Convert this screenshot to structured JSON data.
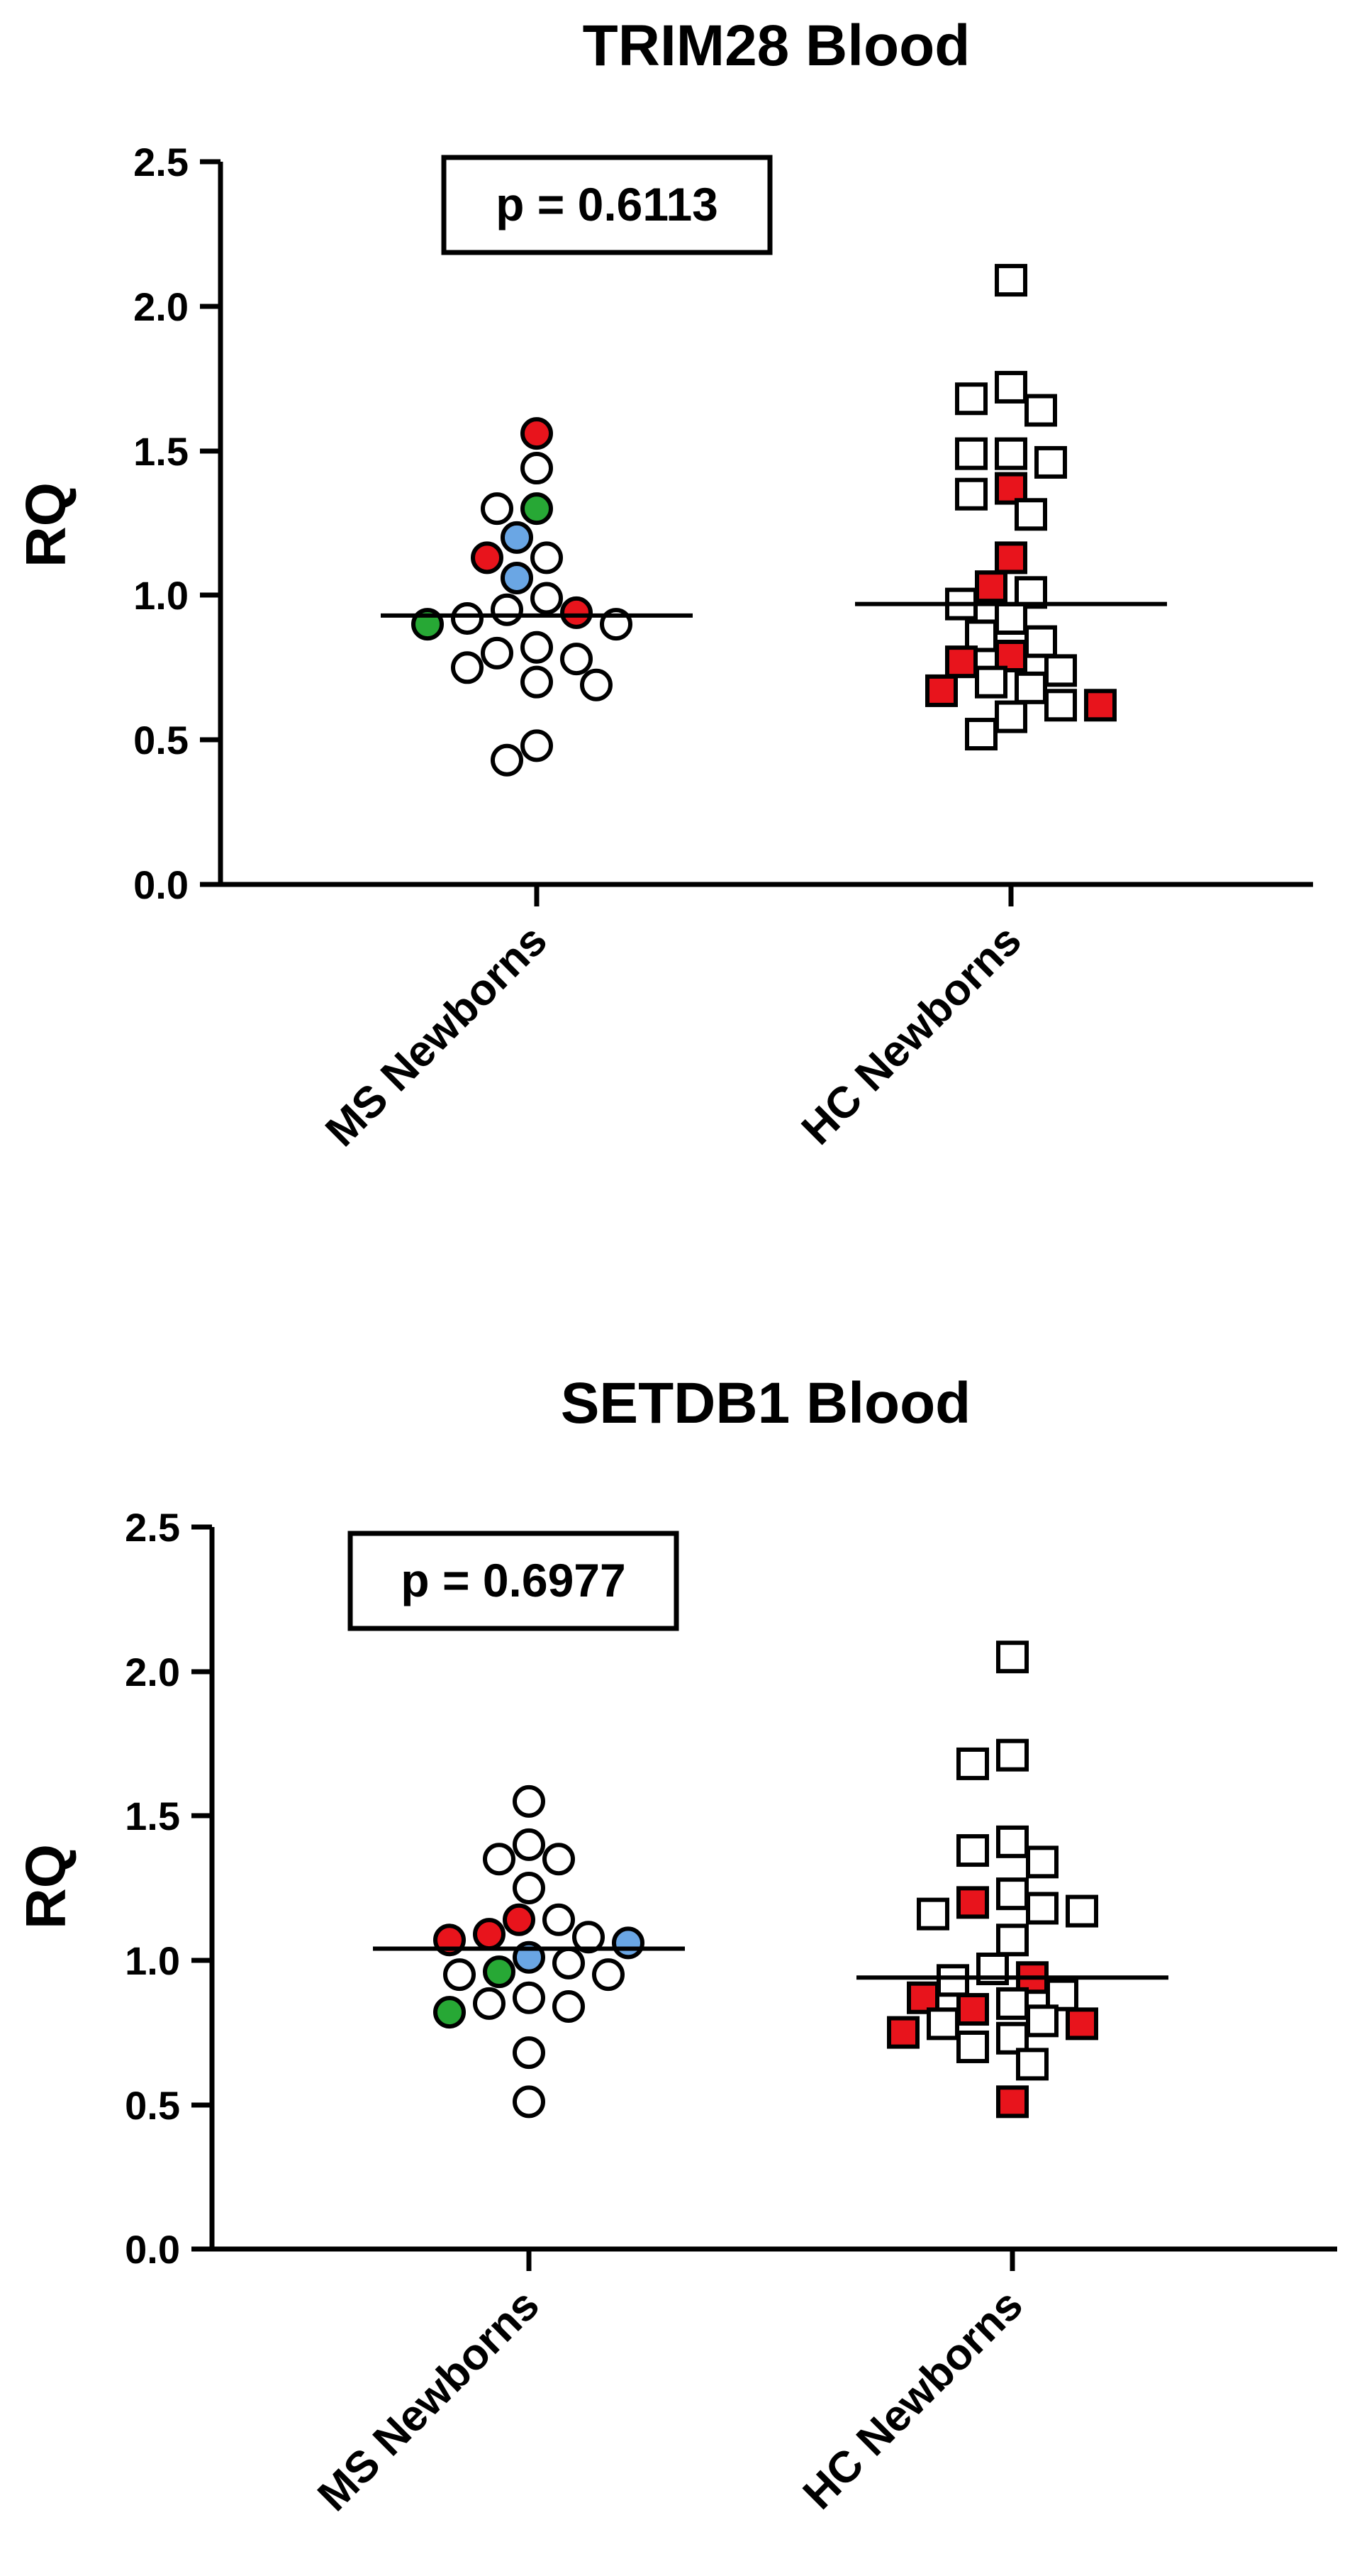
{
  "colors": {
    "open": "#ffffff",
    "red": "#e8141c",
    "blue": "#6aa6e4",
    "green": "#27a835",
    "stroke": "#000000"
  },
  "chart_data": [
    {
      "type": "scatter",
      "title": "TRIM28 Blood",
      "ylabel": "RQ",
      "xlabel": "",
      "ylim": [
        0,
        2.5
      ],
      "yticks": [
        "0.0",
        "0.5",
        "1.0",
        "1.5",
        "2.0",
        "2.5"
      ],
      "categories": [
        "MS Newborns",
        "HC Newborns"
      ],
      "annotation": "p = 0.6113",
      "groups": [
        {
          "name": "MS Newborns",
          "marker": "circle",
          "median": 0.93,
          "points": [
            {
              "y": 1.56,
              "color": "red"
            },
            {
              "y": 1.44,
              "color": "open"
            },
            {
              "y": 1.3,
              "color": "green"
            },
            {
              "y": 1.3,
              "color": "open"
            },
            {
              "y": 1.2,
              "color": "blue"
            },
            {
              "y": 1.13,
              "color": "open"
            },
            {
              "y": 1.13,
              "color": "red"
            },
            {
              "y": 1.06,
              "color": "blue"
            },
            {
              "y": 0.99,
              "color": "open"
            },
            {
              "y": 0.95,
              "color": "open"
            },
            {
              "y": 0.94,
              "color": "red"
            },
            {
              "y": 0.92,
              "color": "open"
            },
            {
              "y": 0.9,
              "color": "open"
            },
            {
              "y": 0.9,
              "color": "green"
            },
            {
              "y": 0.82,
              "color": "open"
            },
            {
              "y": 0.8,
              "color": "open"
            },
            {
              "y": 0.78,
              "color": "open"
            },
            {
              "y": 0.75,
              "color": "open"
            },
            {
              "y": 0.7,
              "color": "open"
            },
            {
              "y": 0.69,
              "color": "open"
            },
            {
              "y": 0.48,
              "color": "open"
            },
            {
              "y": 0.43,
              "color": "open"
            }
          ]
        },
        {
          "name": "HC Newborns",
          "marker": "square",
          "median": 0.97,
          "points": [
            {
              "y": 2.09,
              "color": "open"
            },
            {
              "y": 1.72,
              "color": "open"
            },
            {
              "y": 1.68,
              "color": "open"
            },
            {
              "y": 1.64,
              "color": "open"
            },
            {
              "y": 1.49,
              "color": "open"
            },
            {
              "y": 1.49,
              "color": "open"
            },
            {
              "y": 1.46,
              "color": "open"
            },
            {
              "y": 1.37,
              "color": "red"
            },
            {
              "y": 1.35,
              "color": "open"
            },
            {
              "y": 1.28,
              "color": "open"
            },
            {
              "y": 1.13,
              "color": "red"
            },
            {
              "y": 1.03,
              "color": "red"
            },
            {
              "y": 1.01,
              "color": "open"
            },
            {
              "y": 0.97,
              "color": "open"
            },
            {
              "y": 0.92,
              "color": "open"
            },
            {
              "y": 0.86,
              "color": "open"
            },
            {
              "y": 0.84,
              "color": "open"
            },
            {
              "y": 0.79,
              "color": "red"
            },
            {
              "y": 0.77,
              "color": "red"
            },
            {
              "y": 0.74,
              "color": "open"
            },
            {
              "y": 0.7,
              "color": "open"
            },
            {
              "y": 0.68,
              "color": "open"
            },
            {
              "y": 0.67,
              "color": "red"
            },
            {
              "y": 0.62,
              "color": "open"
            },
            {
              "y": 0.62,
              "color": "red"
            },
            {
              "y": 0.58,
              "color": "open"
            },
            {
              "y": 0.52,
              "color": "open"
            }
          ]
        }
      ]
    },
    {
      "type": "scatter",
      "title": "SETDB1 Blood",
      "ylabel": "RQ",
      "xlabel": "",
      "ylim": [
        0,
        2.5
      ],
      "yticks": [
        "0.0",
        "0.5",
        "1.0",
        "1.5",
        "2.0",
        "2.5"
      ],
      "categories": [
        "MS Newborns",
        "HC Newborns"
      ],
      "annotation": "p = 0.6977",
      "groups": [
        {
          "name": "MS Newborns",
          "marker": "circle",
          "median": 1.04,
          "points": [
            {
              "y": 1.55,
              "color": "open"
            },
            {
              "y": 1.4,
              "color": "open"
            },
            {
              "y": 1.35,
              "color": "open"
            },
            {
              "y": 1.35,
              "color": "open"
            },
            {
              "y": 1.25,
              "color": "open"
            },
            {
              "y": 1.14,
              "color": "red"
            },
            {
              "y": 1.14,
              "color": "open"
            },
            {
              "y": 1.09,
              "color": "red"
            },
            {
              "y": 1.08,
              "color": "open"
            },
            {
              "y": 1.07,
              "color": "red"
            },
            {
              "y": 1.06,
              "color": "blue"
            },
            {
              "y": 1.01,
              "color": "blue"
            },
            {
              "y": 0.99,
              "color": "open"
            },
            {
              "y": 0.96,
              "color": "green"
            },
            {
              "y": 0.95,
              "color": "open"
            },
            {
              "y": 0.95,
              "color": "open"
            },
            {
              "y": 0.87,
              "color": "open"
            },
            {
              "y": 0.85,
              "color": "open"
            },
            {
              "y": 0.84,
              "color": "open"
            },
            {
              "y": 0.82,
              "color": "green"
            },
            {
              "y": 0.68,
              "color": "open"
            },
            {
              "y": 0.51,
              "color": "open"
            }
          ]
        },
        {
          "name": "HC Newborns",
          "marker": "square",
          "median": 0.94,
          "points": [
            {
              "y": 2.05,
              "color": "open"
            },
            {
              "y": 1.71,
              "color": "open"
            },
            {
              "y": 1.68,
              "color": "open"
            },
            {
              "y": 1.41,
              "color": "open"
            },
            {
              "y": 1.38,
              "color": "open"
            },
            {
              "y": 1.34,
              "color": "open"
            },
            {
              "y": 1.23,
              "color": "open"
            },
            {
              "y": 1.2,
              "color": "red"
            },
            {
              "y": 1.18,
              "color": "open"
            },
            {
              "y": 1.17,
              "color": "open"
            },
            {
              "y": 1.16,
              "color": "open"
            },
            {
              "y": 1.07,
              "color": "open"
            },
            {
              "y": 0.97,
              "color": "open"
            },
            {
              "y": 0.94,
              "color": "red"
            },
            {
              "y": 0.93,
              "color": "open"
            },
            {
              "y": 0.88,
              "color": "open"
            },
            {
              "y": 0.87,
              "color": "red"
            },
            {
              "y": 0.85,
              "color": "open"
            },
            {
              "y": 0.83,
              "color": "red"
            },
            {
              "y": 0.79,
              "color": "open"
            },
            {
              "y": 0.78,
              "color": "open"
            },
            {
              "y": 0.78,
              "color": "red"
            },
            {
              "y": 0.75,
              "color": "red"
            },
            {
              "y": 0.73,
              "color": "open"
            },
            {
              "y": 0.7,
              "color": "open"
            },
            {
              "y": 0.64,
              "color": "open"
            },
            {
              "y": 0.51,
              "color": "red"
            }
          ]
        }
      ]
    }
  ]
}
